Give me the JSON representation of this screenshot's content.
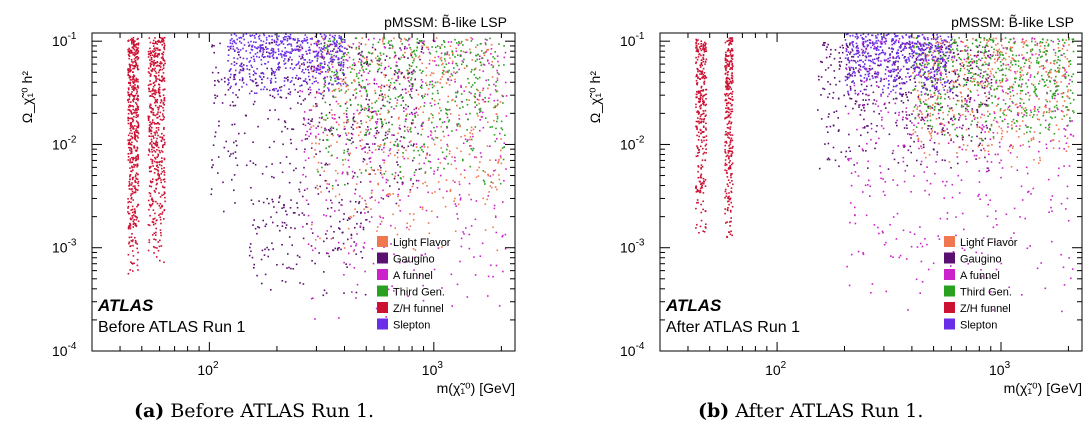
{
  "chart_data": [
    {
      "type": "scatter",
      "panel_label": "(a)",
      "caption_text": "Before ATLAS Run 1.",
      "title": "pMSSM: B̃-like LSP",
      "experiment_label": "ATLAS",
      "status_label": "Before ATLAS Run 1",
      "xlabel": "m(χ̃₁⁰) [GeV]",
      "ylabel": "Ω_χ̃₁⁰ h²",
      "x_scale": "log",
      "y_scale": "log",
      "xlim": [
        30,
        2300
      ],
      "ylim": [
        0.0001,
        0.12
      ],
      "x_ticks": [
        {
          "value": 100,
          "label": "10",
          "exp": "2"
        },
        {
          "value": 1000,
          "label": "10",
          "exp": "3"
        }
      ],
      "y_ticks": [
        {
          "value": 0.1,
          "label": "10",
          "exp": "-1"
        },
        {
          "value": 0.01,
          "label": "10",
          "exp": "-2"
        },
        {
          "value": 0.001,
          "label": "10",
          "exp": "-3"
        },
        {
          "value": 0.0001,
          "label": "10",
          "exp": "-4"
        }
      ],
      "legend_position": "bottom-right",
      "series": [
        {
          "name": "Light Flavor",
          "color": "#f07850",
          "regions": [
            {
              "x": [
                280,
                2000
              ],
              "y": [
                0.0009,
                0.11
              ],
              "weight": 1.0
            }
          ]
        },
        {
          "name": "Gaugino",
          "color": "#5a1070",
          "regions": [
            {
              "x": [
                100,
                900
              ],
              "y": [
                0.002,
                0.1
              ],
              "weight": 1.0
            },
            {
              "x": [
                150,
                500
              ],
              "y": [
                0.0003,
                0.003
              ],
              "weight": 0.3
            }
          ]
        },
        {
          "name": "A funnel",
          "color": "#cc22cc",
          "regions": [
            {
              "x": [
                250,
                2100
              ],
              "y": [
                0.0002,
                0.11
              ],
              "weight": 1.0
            }
          ]
        },
        {
          "name": "Third Gen.",
          "color": "#2aa020",
          "regions": [
            {
              "x": [
                300,
                2100
              ],
              "y": [
                0.004,
                0.11
              ],
              "weight": 1.0
            }
          ]
        },
        {
          "name": "Z/H funnel",
          "color": "#cc1133",
          "regions": [
            {
              "x": [
                43,
                48
              ],
              "y": [
                0.0005,
                0.11
              ],
              "weight": 1.0
            },
            {
              "x": [
                53,
                63
              ],
              "y": [
                0.0007,
                0.11
              ],
              "weight": 1.0
            }
          ]
        },
        {
          "name": "Slepton",
          "color": "#6a2ee8",
          "regions": [
            {
              "x": [
                120,
                400
              ],
              "y": [
                0.03,
                0.12
              ],
              "weight": 1.0
            }
          ]
        }
      ]
    },
    {
      "type": "scatter",
      "panel_label": "(b)",
      "caption_text": "After ATLAS Run 1.",
      "title": "pMSSM: B̃-like LSP",
      "experiment_label": "ATLAS",
      "status_label": "After ATLAS Run 1",
      "xlabel": "m(χ̃₁⁰) [GeV]",
      "ylabel": "Ω_χ̃₁⁰ h²",
      "x_scale": "log",
      "y_scale": "log",
      "xlim": [
        30,
        2300
      ],
      "ylim": [
        0.0001,
        0.12
      ],
      "x_ticks": [
        {
          "value": 100,
          "label": "10",
          "exp": "2"
        },
        {
          "value": 1000,
          "label": "10",
          "exp": "3"
        }
      ],
      "y_ticks": [
        {
          "value": 0.1,
          "label": "10",
          "exp": "-1"
        },
        {
          "value": 0.01,
          "label": "10",
          "exp": "-2"
        },
        {
          "value": 0.001,
          "label": "10",
          "exp": "-3"
        },
        {
          "value": 0.0001,
          "label": "10",
          "exp": "-4"
        }
      ],
      "legend_position": "bottom-right",
      "series": [
        {
          "name": "Light Flavor",
          "color": "#f07850",
          "regions": [
            {
              "x": [
                400,
                2000
              ],
              "y": [
                0.006,
                0.11
              ],
              "weight": 1.0
            }
          ]
        },
        {
          "name": "Gaugino",
          "color": "#5a1070",
          "regions": [
            {
              "x": [
                150,
                900
              ],
              "y": [
                0.005,
                0.1
              ],
              "weight": 1.0
            }
          ]
        },
        {
          "name": "A funnel",
          "color": "#cc22cc",
          "regions": [
            {
              "x": [
                200,
                2100
              ],
              "y": [
                0.0002,
                0.11
              ],
              "weight": 1.0
            }
          ]
        },
        {
          "name": "Third Gen.",
          "color": "#2aa020",
          "regions": [
            {
              "x": [
                400,
                2100
              ],
              "y": [
                0.01,
                0.11
              ],
              "weight": 1.0
            }
          ]
        },
        {
          "name": "Z/H funnel",
          "color": "#cc1133",
          "regions": [
            {
              "x": [
                43,
                48
              ],
              "y": [
                0.0012,
                0.11
              ],
              "weight": 0.6
            },
            {
              "x": [
                58,
                63
              ],
              "y": [
                0.0012,
                0.11
              ],
              "weight": 0.6
            }
          ]
        },
        {
          "name": "Slepton",
          "color": "#6a2ee8",
          "regions": [
            {
              "x": [
                200,
                600
              ],
              "y": [
                0.03,
                0.12
              ],
              "weight": 1.0
            }
          ]
        }
      ]
    }
  ],
  "captions": [
    {
      "label": "(a)",
      "text": "Before ATLAS Run 1."
    },
    {
      "label": "(b)",
      "text": "After ATLAS Run 1."
    }
  ]
}
